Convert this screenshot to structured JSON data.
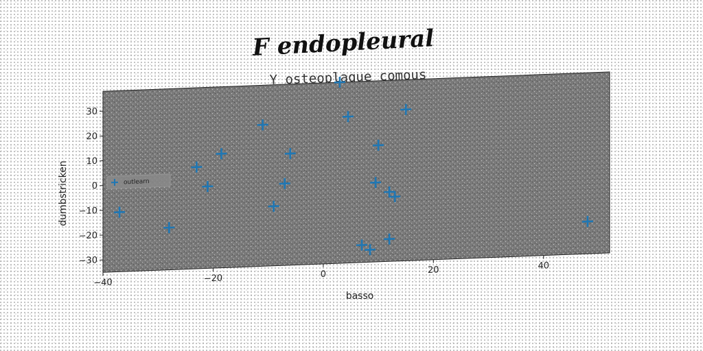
{
  "chart_data": {
    "type": "scatter",
    "title": "F endopleural",
    "subtitle": "Y osteoplaque comous",
    "xlabel": "basso",
    "ylabel": "dumbstricken",
    "xlim": [
      -40,
      52
    ],
    "ylim": [
      -35,
      38
    ],
    "xticks": [
      -40,
      -20,
      0,
      20,
      40
    ],
    "xtick_labels": [
      "−40",
      "−20",
      "0",
      "20",
      "40"
    ],
    "yticks": [
      -30,
      -20,
      -10,
      0,
      10,
      20,
      30
    ],
    "ytick_labels": [
      "−30",
      "−20",
      "−10",
      "0",
      "10",
      "20",
      "30"
    ],
    "grid": false,
    "legend_position": "center-left",
    "series": [
      {
        "name": "outlearn",
        "marker": "plus",
        "color": "#1f77b4",
        "points": [
          [
            3,
            38
          ],
          [
            4.5,
            24
          ],
          [
            15,
            26
          ],
          [
            -11,
            22
          ],
          [
            -18.5,
            11
          ],
          [
            -6,
            10
          ],
          [
            10,
            12
          ],
          [
            -23,
            6
          ],
          [
            -21,
            -2
          ],
          [
            -7,
            -2
          ],
          [
            9.5,
            -3
          ],
          [
            -37,
            -11
          ],
          [
            -9,
            -11
          ],
          [
            12,
            -7
          ],
          [
            13,
            -9
          ],
          [
            -28,
            -18
          ],
          [
            7,
            -28
          ],
          [
            8.5,
            -30
          ],
          [
            12,
            -26
          ],
          [
            48,
            -22
          ]
        ]
      }
    ]
  }
}
